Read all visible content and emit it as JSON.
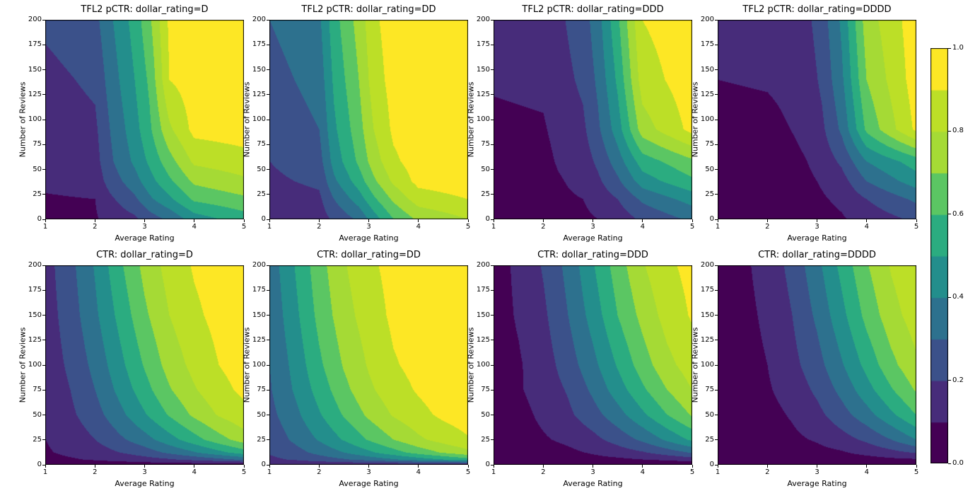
{
  "figure": {
    "background": "#ffffff",
    "description": "2x4 grid of filled contour plots of predicted and true click-through-rate vs average rating and number of reviews, one column per dollar_rating, with shared viridis colorbar"
  },
  "chart_data": {
    "type": "heatmap",
    "layout": "2 rows x 4 columns, filled contours, shared vertical colorbar on right",
    "axes": {
      "xlabel": "Average Rating",
      "ylabel": "Number of Reviews",
      "xlim": [
        1,
        5
      ],
      "ylim": [
        0,
        200
      ],
      "xticks": [
        1,
        2,
        3,
        4,
        5
      ],
      "yticks": [
        0,
        25,
        50,
        75,
        100,
        125,
        150,
        175,
        200
      ]
    },
    "levels": [
      0,
      0.1,
      0.2,
      0.3,
      0.4,
      0.5,
      0.6,
      0.7,
      0.8,
      0.9,
      1.0
    ],
    "colorbar": {
      "min": 0.0,
      "max": 1.0,
      "ticks": [
        "0.0",
        "0.2",
        "0.4",
        "0.6",
        "0.8",
        "1.0"
      ],
      "colormap": "viridis",
      "stops": [
        "#440154",
        "#482878",
        "#3e4a89",
        "#31688e",
        "#26828e",
        "#1f9e89",
        "#35b779",
        "#6ece58",
        "#b5de2b",
        "#bddf26",
        "#fde725"
      ]
    },
    "subplots": [
      {
        "title": "TFL2 pCTR: dollar_rating=D",
        "x_keypoints": [
          1,
          2,
          2.3,
          2.8,
          3.1,
          3.5,
          4,
          5
        ],
        "y_keypoints": [
          0,
          20,
          38,
          58,
          90,
          140,
          200
        ],
        "values": [
          [
            0.08,
            0.09,
            0.13,
            0.18,
            0.25,
            0.32,
            0.45,
            0.55
          ],
          [
            0.09,
            0.1,
            0.18,
            0.28,
            0.38,
            0.48,
            0.62,
            0.68
          ],
          [
            0.12,
            0.14,
            0.24,
            0.36,
            0.46,
            0.58,
            0.72,
            0.78
          ],
          [
            0.13,
            0.16,
            0.28,
            0.42,
            0.52,
            0.66,
            0.82,
            0.86
          ],
          [
            0.14,
            0.18,
            0.3,
            0.46,
            0.58,
            0.78,
            0.93,
            0.95
          ],
          [
            0.17,
            0.22,
            0.34,
            0.5,
            0.62,
            0.9,
            0.95,
            0.97
          ],
          [
            0.22,
            0.27,
            0.38,
            0.54,
            0.68,
            0.92,
            0.96,
            0.98
          ]
        ]
      },
      {
        "title": "TFL2 pCTR: dollar_rating=DD",
        "x_keypoints": [
          1,
          2,
          2.3,
          2.8,
          3.1,
          3.5,
          4,
          5
        ],
        "y_keypoints": [
          0,
          20,
          38,
          58,
          90,
          140,
          200
        ],
        "values": [
          [
            0.13,
            0.15,
            0.22,
            0.32,
            0.45,
            0.6,
            0.72,
            0.8
          ],
          [
            0.15,
            0.18,
            0.3,
            0.45,
            0.58,
            0.72,
            0.85,
            0.9
          ],
          [
            0.18,
            0.22,
            0.38,
            0.55,
            0.68,
            0.82,
            0.93,
            0.96
          ],
          [
            0.2,
            0.26,
            0.44,
            0.62,
            0.75,
            0.88,
            0.95,
            0.97
          ],
          [
            0.22,
            0.3,
            0.48,
            0.66,
            0.8,
            0.92,
            0.96,
            0.98
          ],
          [
            0.26,
            0.34,
            0.52,
            0.7,
            0.85,
            0.94,
            0.97,
            0.98
          ],
          [
            0.3,
            0.38,
            0.56,
            0.74,
            0.88,
            0.95,
            0.97,
            0.98
          ]
        ]
      },
      {
        "title": "TFL2 pCTR: dollar_rating=DDD",
        "x_keypoints": [
          1,
          2,
          2.3,
          2.8,
          3.1,
          3.5,
          4,
          5
        ],
        "y_keypoints": [
          0,
          20,
          38,
          58,
          90,
          140,
          200
        ],
        "values": [
          [
            0.03,
            0.04,
            0.06,
            0.08,
            0.1,
            0.14,
            0.22,
            0.32
          ],
          [
            0.04,
            0.05,
            0.08,
            0.1,
            0.14,
            0.2,
            0.32,
            0.44
          ],
          [
            0.05,
            0.06,
            0.09,
            0.13,
            0.18,
            0.28,
            0.45,
            0.58
          ],
          [
            0.06,
            0.07,
            0.11,
            0.15,
            0.22,
            0.35,
            0.55,
            0.68
          ],
          [
            0.08,
            0.09,
            0.13,
            0.18,
            0.28,
            0.45,
            0.75,
            0.93
          ],
          [
            0.11,
            0.12,
            0.16,
            0.22,
            0.32,
            0.52,
            0.85,
            0.96
          ],
          [
            0.12,
            0.14,
            0.18,
            0.25,
            0.36,
            0.58,
            0.9,
            0.97
          ]
        ]
      },
      {
        "title": "TFL2 pCTR: dollar_rating=DDDD",
        "x_keypoints": [
          1,
          2,
          2.3,
          2.8,
          3.1,
          3.5,
          4,
          5
        ],
        "y_keypoints": [
          0,
          20,
          38,
          58,
          90,
          140,
          200
        ],
        "values": [
          [
            0.02,
            0.03,
            0.04,
            0.05,
            0.07,
            0.09,
            0.14,
            0.22
          ],
          [
            0.03,
            0.04,
            0.05,
            0.07,
            0.09,
            0.12,
            0.2,
            0.32
          ],
          [
            0.04,
            0.05,
            0.06,
            0.08,
            0.11,
            0.16,
            0.3,
            0.45
          ],
          [
            0.05,
            0.06,
            0.07,
            0.1,
            0.14,
            0.22,
            0.4,
            0.55
          ],
          [
            0.06,
            0.07,
            0.09,
            0.12,
            0.18,
            0.32,
            0.62,
            0.92
          ],
          [
            0.1,
            0.11,
            0.12,
            0.15,
            0.22,
            0.38,
            0.7,
            0.95
          ],
          [
            0.11,
            0.12,
            0.14,
            0.18,
            0.25,
            0.42,
            0.75,
            0.96
          ]
        ]
      },
      {
        "title": "CTR: dollar_rating=D",
        "x_keypoints": [
          1,
          1.5,
          2,
          2.5,
          3,
          3.5,
          4,
          4.5,
          5
        ],
        "y_keypoints": [
          0,
          5,
          12,
          25,
          50,
          75,
          100,
          150,
          200
        ],
        "values": [
          [
            0.05,
            0.05,
            0.05,
            0.05,
            0.05,
            0.05,
            0.05,
            0.05,
            0.05
          ],
          [
            0.07,
            0.09,
            0.11,
            0.13,
            0.16,
            0.19,
            0.23,
            0.27,
            0.32
          ],
          [
            0.09,
            0.12,
            0.15,
            0.2,
            0.25,
            0.32,
            0.39,
            0.47,
            0.55
          ],
          [
            0.1,
            0.14,
            0.2,
            0.28,
            0.36,
            0.46,
            0.56,
            0.66,
            0.75
          ],
          [
            0.12,
            0.18,
            0.26,
            0.37,
            0.49,
            0.61,
            0.72,
            0.81,
            0.87
          ],
          [
            0.13,
            0.2,
            0.3,
            0.43,
            0.56,
            0.69,
            0.79,
            0.87,
            0.92
          ],
          [
            0.14,
            0.22,
            0.33,
            0.47,
            0.61,
            0.74,
            0.83,
            0.9,
            0.94
          ],
          [
            0.15,
            0.25,
            0.38,
            0.53,
            0.68,
            0.8,
            0.88,
            0.93,
            0.96
          ],
          [
            0.16,
            0.27,
            0.41,
            0.58,
            0.73,
            0.84,
            0.91,
            0.95,
            0.97
          ]
        ]
      },
      {
        "title": "CTR: dollar_rating=DD",
        "x_keypoints": [
          1,
          1.5,
          2,
          2.5,
          3,
          3.5,
          4,
          4.5,
          5
        ],
        "y_keypoints": [
          0,
          5,
          12,
          25,
          50,
          75,
          100,
          150,
          200
        ],
        "values": [
          [
            0.12,
            0.12,
            0.12,
            0.12,
            0.12,
            0.12,
            0.12,
            0.12,
            0.12
          ],
          [
            0.18,
            0.21,
            0.25,
            0.29,
            0.34,
            0.39,
            0.45,
            0.5,
            0.56
          ],
          [
            0.21,
            0.26,
            0.33,
            0.4,
            0.48,
            0.56,
            0.64,
            0.71,
            0.77
          ],
          [
            0.23,
            0.32,
            0.41,
            0.51,
            0.61,
            0.7,
            0.78,
            0.84,
            0.89
          ],
          [
            0.27,
            0.37,
            0.49,
            0.61,
            0.72,
            0.81,
            0.87,
            0.92,
            0.95
          ],
          [
            0.29,
            0.41,
            0.54,
            0.67,
            0.78,
            0.86,
            0.91,
            0.95,
            0.97
          ],
          [
            0.3,
            0.43,
            0.58,
            0.71,
            0.81,
            0.89,
            0.93,
            0.96,
            0.98
          ],
          [
            0.32,
            0.47,
            0.63,
            0.76,
            0.85,
            0.92,
            0.95,
            0.97,
            0.99
          ],
          [
            0.34,
            0.5,
            0.66,
            0.79,
            0.88,
            0.93,
            0.96,
            0.98,
            0.99
          ]
        ]
      },
      {
        "title": "CTR: dollar_rating=DDD",
        "x_keypoints": [
          1,
          1.5,
          2,
          2.5,
          3,
          3.5,
          4,
          4.5,
          5
        ],
        "y_keypoints": [
          0,
          5,
          12,
          25,
          50,
          75,
          100,
          150,
          200
        ],
        "values": [
          [
            0.02,
            0.02,
            0.02,
            0.02,
            0.02,
            0.02,
            0.02,
            0.02,
            0.02
          ],
          [
            0.03,
            0.03,
            0.04,
            0.05,
            0.07,
            0.08,
            0.1,
            0.12,
            0.15
          ],
          [
            0.03,
            0.05,
            0.06,
            0.08,
            0.11,
            0.15,
            0.19,
            0.25,
            0.31
          ],
          [
            0.04,
            0.06,
            0.09,
            0.12,
            0.17,
            0.24,
            0.32,
            0.42,
            0.52
          ],
          [
            0.05,
            0.07,
            0.12,
            0.18,
            0.26,
            0.36,
            0.48,
            0.6,
            0.71
          ],
          [
            0.05,
            0.09,
            0.14,
            0.21,
            0.32,
            0.45,
            0.58,
            0.7,
            0.8
          ],
          [
            0.06,
            0.09,
            0.15,
            0.25,
            0.37,
            0.51,
            0.65,
            0.77,
            0.85
          ],
          [
            0.06,
            0.11,
            0.18,
            0.3,
            0.44,
            0.6,
            0.73,
            0.84,
            0.91
          ],
          [
            0.06,
            0.12,
            0.21,
            0.33,
            0.49,
            0.65,
            0.79,
            0.88,
            0.93
          ]
        ]
      },
      {
        "title": "CTR: dollar_rating=DDDD",
        "x_keypoints": [
          1,
          1.5,
          2,
          2.5,
          3,
          3.5,
          4,
          4.5,
          5
        ],
        "y_keypoints": [
          0,
          5,
          12,
          25,
          50,
          75,
          100,
          150,
          200
        ],
        "values": [
          [
            0.01,
            0.01,
            0.01,
            0.01,
            0.01,
            0.01,
            0.01,
            0.01,
            0.01
          ],
          [
            0.02,
            0.02,
            0.03,
            0.03,
            0.04,
            0.05,
            0.06,
            0.08,
            0.09
          ],
          [
            0.02,
            0.03,
            0.04,
            0.05,
            0.07,
            0.09,
            0.13,
            0.17,
            0.21
          ],
          [
            0.02,
            0.04,
            0.05,
            0.08,
            0.11,
            0.16,
            0.22,
            0.3,
            0.4
          ],
          [
            0.03,
            0.05,
            0.07,
            0.11,
            0.17,
            0.26,
            0.36,
            0.48,
            0.6
          ],
          [
            0.03,
            0.05,
            0.09,
            0.14,
            0.22,
            0.33,
            0.46,
            0.59,
            0.71
          ],
          [
            0.03,
            0.06,
            0.1,
            0.17,
            0.26,
            0.39,
            0.53,
            0.67,
            0.78
          ],
          [
            0.04,
            0.07,
            0.12,
            0.2,
            0.32,
            0.47,
            0.63,
            0.76,
            0.85
          ],
          [
            0.04,
            0.08,
            0.14,
            0.23,
            0.37,
            0.53,
            0.69,
            0.81,
            0.89
          ]
        ]
      }
    ]
  }
}
